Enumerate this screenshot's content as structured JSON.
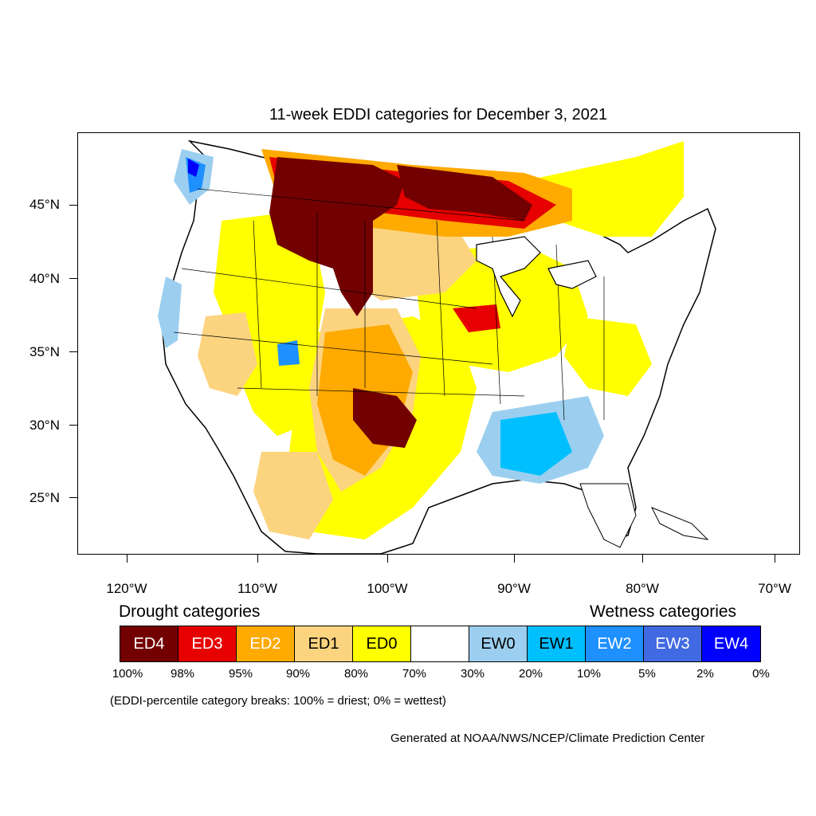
{
  "title": "11-week EDDI categories for December 3, 2021",
  "latitude_labels": [
    "45°N",
    "40°N",
    "35°N",
    "30°N",
    "25°N"
  ],
  "longitude_labels": [
    "120°W",
    "110°W",
    "100°W",
    "90°W",
    "80°W",
    "70°W"
  ],
  "legend": {
    "drought_heading": "Drought categories",
    "wetness_heading": "Wetness categories",
    "categories": [
      {
        "label": "ED4",
        "color": "#730000",
        "text_color": "#ffffff"
      },
      {
        "label": "ED3",
        "color": "#e60000",
        "text_color": "#ffffff"
      },
      {
        "label": "ED2",
        "color": "#ffaa00",
        "text_color": "#ffffff"
      },
      {
        "label": "ED1",
        "color": "#fcd37f",
        "text_color": "#000000"
      },
      {
        "label": "ED0",
        "color": "#ffff00",
        "text_color": "#000000"
      },
      {
        "label": "",
        "color": "#ffffff",
        "text_color": "#000000"
      },
      {
        "label": "EW0",
        "color": "#9ccfef",
        "text_color": "#000000"
      },
      {
        "label": "EW1",
        "color": "#00bfff",
        "text_color": "#000000"
      },
      {
        "label": "EW2",
        "color": "#1e90ff",
        "text_color": "#ffffff"
      },
      {
        "label": "EW3",
        "color": "#4169e1",
        "text_color": "#ffffff"
      },
      {
        "label": "EW4",
        "color": "#0000ff",
        "text_color": "#ffffff"
      }
    ],
    "breaks": [
      "100%",
      "98%",
      "95%",
      "90%",
      "80%",
      "70%",
      "30%",
      "20%",
      "10%",
      "5%",
      "2%",
      "0%"
    ]
  },
  "note": "(EDDI-percentile category breaks: 100% = driest; 0% = wettest)",
  "credit": "Generated at NOAA/NWS/NCEP/Climate Prediction Center"
}
